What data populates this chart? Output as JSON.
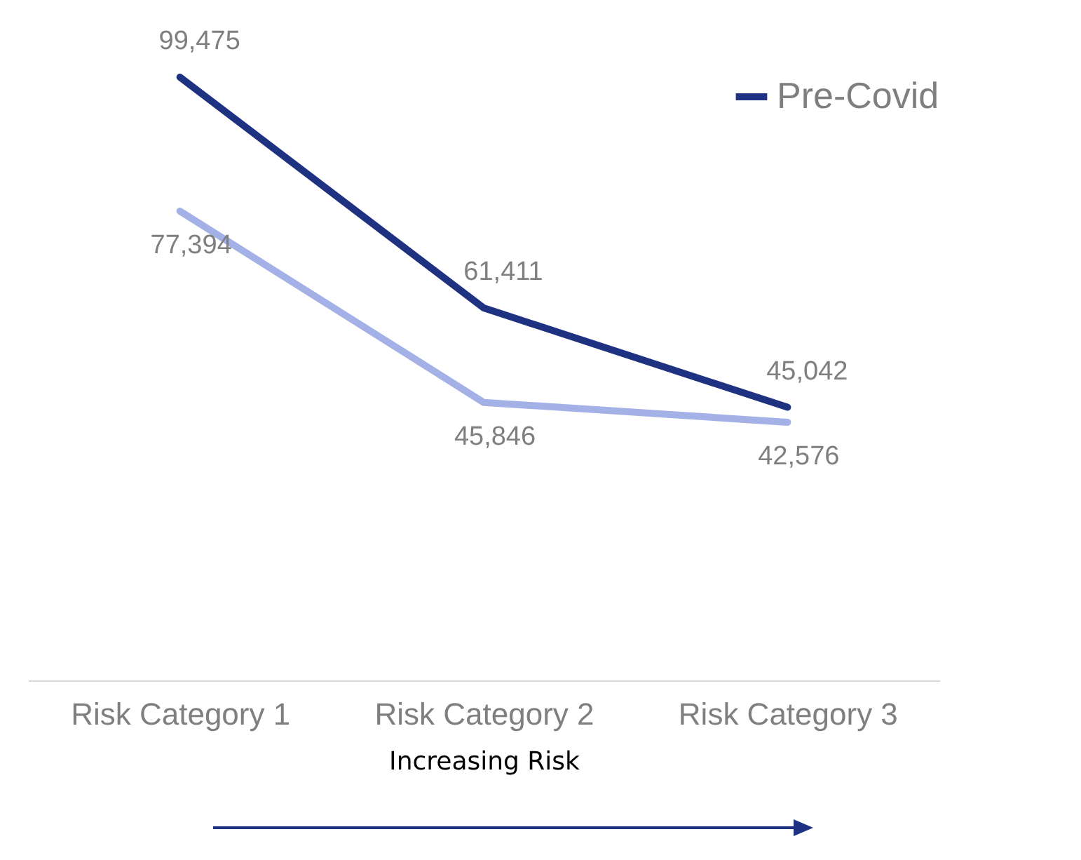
{
  "chart_data": {
    "type": "line",
    "categories": [
      "Risk Category 1",
      "Risk Category 2",
      "Risk Category 3"
    ],
    "series": [
      {
        "name": "Pre-Covid",
        "color": "#1f3282",
        "values": [
          99475,
          61411,
          45042
        ],
        "value_labels": [
          "99,475",
          "61,411",
          "45,042"
        ]
      },
      {
        "color": "#a3b1e6",
        "values": [
          77394,
          45846,
          42576
        ],
        "value_labels": [
          "77,394",
          "45,846",
          "42,576"
        ]
      }
    ],
    "xlabel": "Increasing Risk",
    "legend": "top right",
    "grid": false
  }
}
